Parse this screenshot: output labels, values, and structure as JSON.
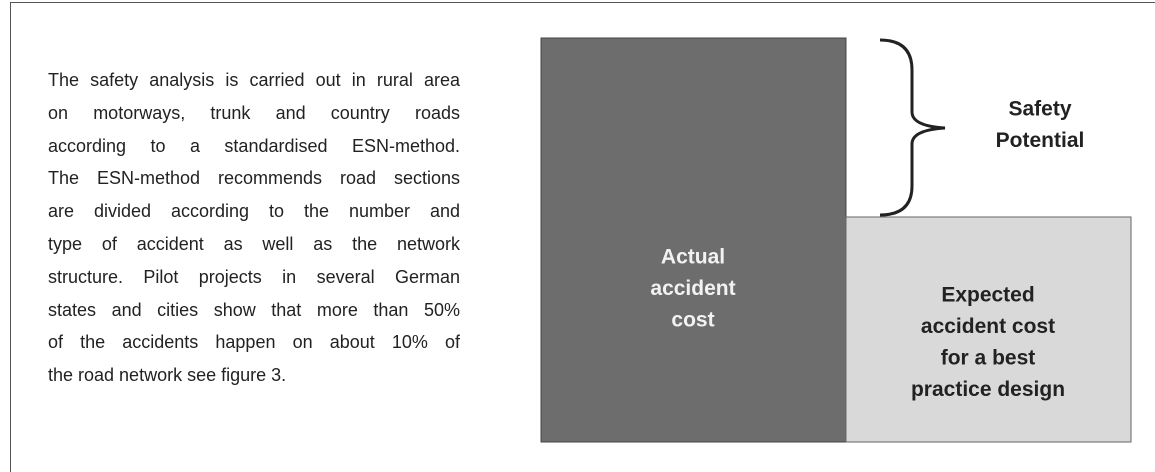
{
  "paragraph": {
    "lines": [
      "The safety analysis is carried out in rural area",
      "on motorways, trunk and country roads",
      "according to a standardised ESN-method.",
      "The ESN-method recommends road sections",
      "are divided according to the number and",
      "type of accident as well as the network",
      "structure.  Pilot projects in several German",
      "states and cities show that more than 50%",
      "of the accidents happen on about 10% of",
      "the road network see figure 3."
    ]
  },
  "figure": {
    "actual": [
      "Actual",
      "accident",
      "cost"
    ],
    "potential": [
      "Safety",
      "Potential"
    ],
    "expected": [
      "Expected",
      "accident cost",
      "for a best",
      "practice design"
    ]
  }
}
